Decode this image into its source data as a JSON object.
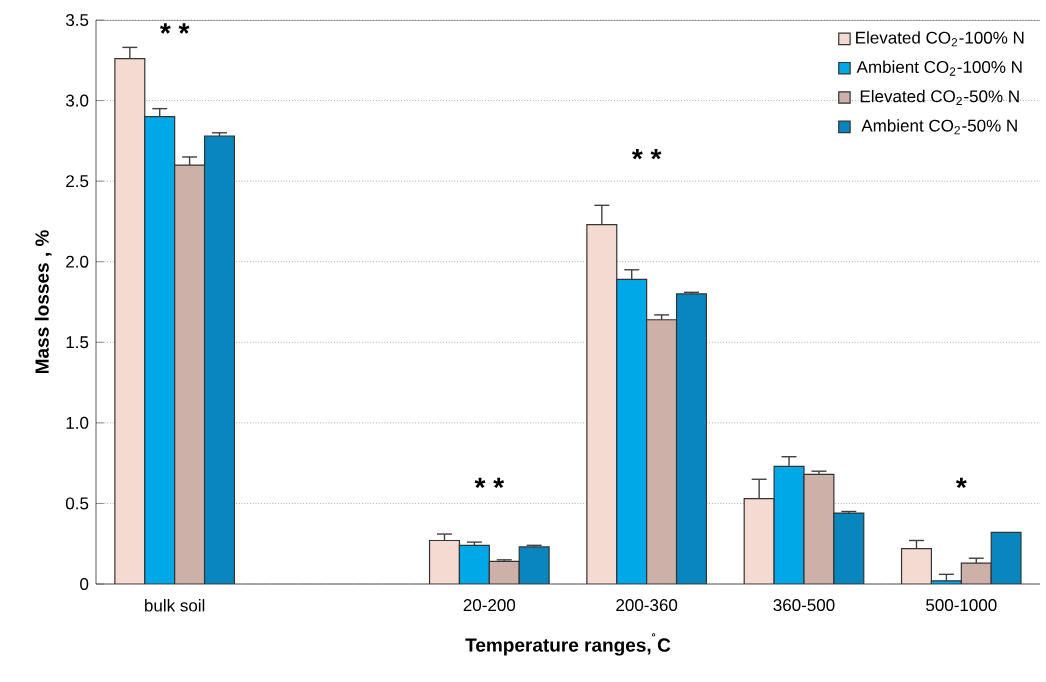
{
  "chart_data": {
    "type": "bar",
    "xlabel": "Temperature ranges,$^{˚}$C",
    "ylabel": "Mass losses , %",
    "categories": [
      "bulk soil",
      null,
      "20-200",
      "200-360",
      "360-500",
      "500-1000"
    ],
    "series": [
      {
        "name": "Elevated CO$_{2}$-100% N",
        "color": "#f5dad2",
        "values": [
          3.26,
          null,
          0.27,
          2.23,
          0.53,
          0.22
        ],
        "errors": [
          0.07,
          null,
          0.04,
          0.12,
          0.12,
          0.05
        ]
      },
      {
        "name": "Ambient CO$_{2}$-100% N",
        "color": "#00a8e8",
        "values": [
          2.9,
          null,
          0.24,
          1.89,
          0.73,
          0.02
        ],
        "errors": [
          0.05,
          null,
          0.02,
          0.06,
          0.06,
          0.04
        ]
      },
      {
        "name": "Elevated CO$_{2}$-50% N",
        "color": "#cdb0a8",
        "values": [
          2.6,
          null,
          0.14,
          1.64,
          0.68,
          0.13
        ],
        "errors": [
          0.05,
          null,
          0.01,
          0.03,
          0.02,
          0.03
        ]
      },
      {
        "name": "Ambient CO$_{2}$-50% N",
        "color": "#0a86bf",
        "values": [
          2.78,
          null,
          0.23,
          1.8,
          0.44,
          0.32
        ],
        "errors": [
          0.02,
          null,
          0.01,
          0.01,
          0.01,
          null
        ]
      }
    ],
    "ylim": [
      0,
      3.5
    ],
    "yticks": [
      {
        "value": 0,
        "label": "0"
      },
      {
        "value": 0.5,
        "label": "0.5"
      },
      {
        "value": 1,
        "label": "1.0"
      },
      {
        "value": 1.5,
        "label": "1.5"
      },
      {
        "value": 2,
        "label": "2.0"
      },
      {
        "value": 2.5,
        "label": "2.5"
      },
      {
        "value": 3,
        "label": "3.0"
      },
      {
        "value": 3.5,
        "label": "3.5"
      }
    ],
    "grid": "y",
    "legend": "top right",
    "annotations": [
      "* *",
      "* *",
      "* *",
      "*"
    ]
  }
}
